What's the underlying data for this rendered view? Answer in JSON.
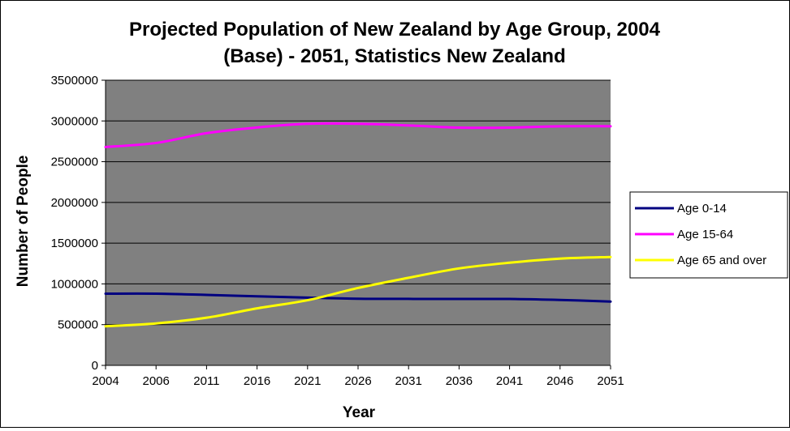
{
  "chart_data": {
    "type": "line",
    "title_line1": "Projected Population of New Zealand by Age Group, 2004",
    "title_line2": "(Base) - 2051, Statistics New Zealand",
    "xlabel": "Year",
    "ylabel": "Number of People",
    "categories": [
      "2004",
      "2006",
      "2011",
      "2016",
      "2021",
      "2026",
      "2031",
      "2036",
      "2041",
      "2046",
      "2051"
    ],
    "ylim": [
      0,
      3500000
    ],
    "yticks": [
      "0",
      "500000",
      "1000000",
      "1500000",
      "2000000",
      "2500000",
      "3000000",
      "3500000"
    ],
    "grid": true,
    "legend_position": "right",
    "plot_background": "#808080",
    "series": [
      {
        "name": "Age 0-14",
        "color": "#000080",
        "values": [
          880000,
          880000,
          865000,
          848000,
          832000,
          818000,
          816000,
          815000,
          815000,
          803000,
          783000
        ]
      },
      {
        "name": "Age 15-64",
        "color": "#ff00ff",
        "values": [
          2680000,
          2730000,
          2850000,
          2920000,
          2965000,
          2965000,
          2945000,
          2918000,
          2918000,
          2935000,
          2935000
        ]
      },
      {
        "name": "Age 65 and over",
        "color": "#ffff00",
        "values": [
          480000,
          515000,
          585000,
          700000,
          800000,
          950000,
          1075000,
          1190000,
          1260000,
          1310000,
          1330000
        ]
      }
    ]
  }
}
